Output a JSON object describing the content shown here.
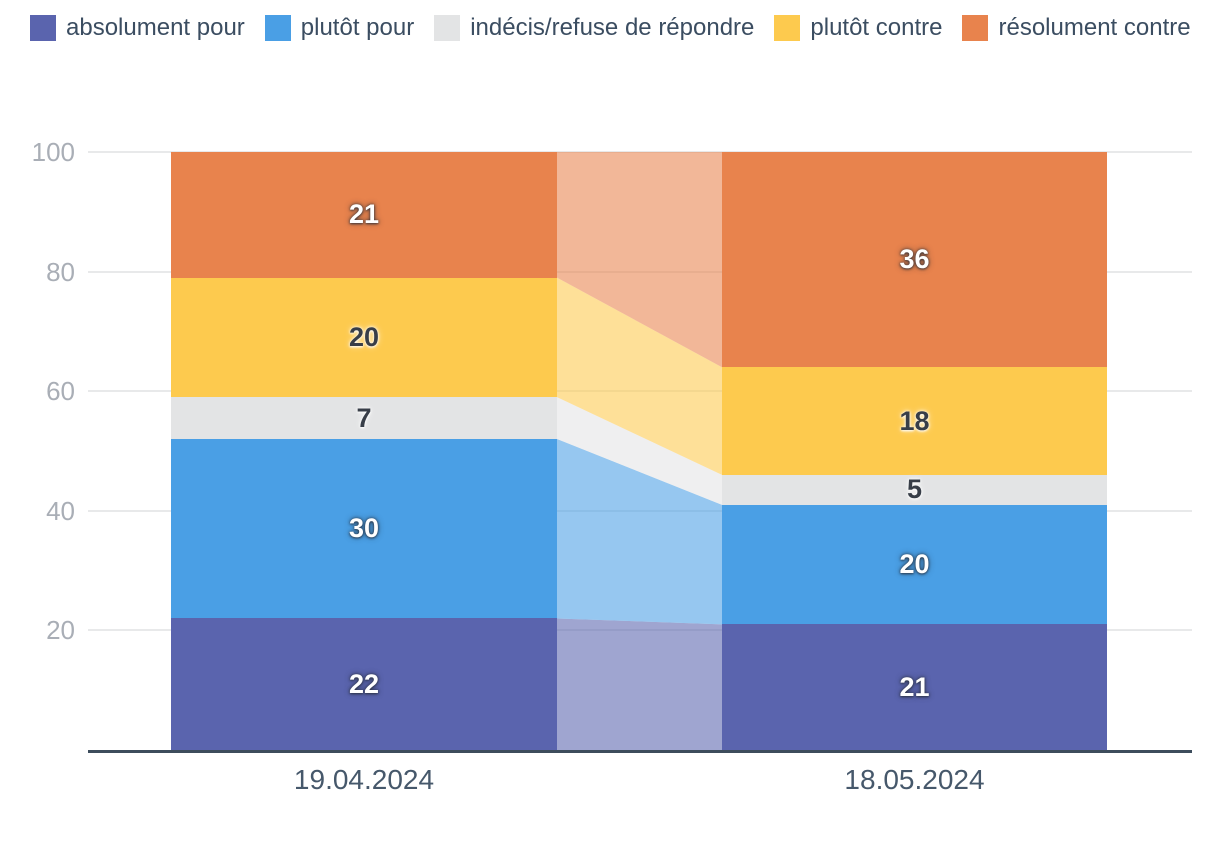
{
  "chart_data": {
    "type": "bar",
    "variant": "stacked-bars-with-flow-connectors",
    "title": "",
    "categories": [
      "19.04.2024",
      "18.05.2024"
    ],
    "stack_order": "bottom-to-top",
    "series": [
      {
        "name": "absolument pour",
        "color": "#5A64AE",
        "values": [
          22,
          21
        ],
        "label_style": "light"
      },
      {
        "name": "plutôt pour",
        "color": "#4A9FE5",
        "values": [
          30,
          20
        ],
        "label_style": "light"
      },
      {
        "name": "indécis/refuse de répondre",
        "color": "#E3E4E5",
        "values": [
          7,
          5
        ],
        "label_style": "dark"
      },
      {
        "name": "plutôt contre",
        "color": "#FDCA4E",
        "values": [
          20,
          18
        ],
        "label_style": "dark"
      },
      {
        "name": "résolument contre",
        "color": "#E8834D",
        "values": [
          21,
          36
        ],
        "label_style": "light"
      }
    ],
    "ylim": [
      0,
      100
    ],
    "yticks": [
      20,
      40,
      60,
      80,
      100
    ],
    "grid": true,
    "legend_position": "top-left",
    "connector_opacity": 0.58
  },
  "colors": {
    "legend_text": "#3B4D61",
    "x_tick_text": "#46586B",
    "y_tick_text": "#A9AEB6",
    "gridline": "#E8E9EA",
    "axis_line": "#3D4D5C",
    "background": "#FFFFFF"
  }
}
